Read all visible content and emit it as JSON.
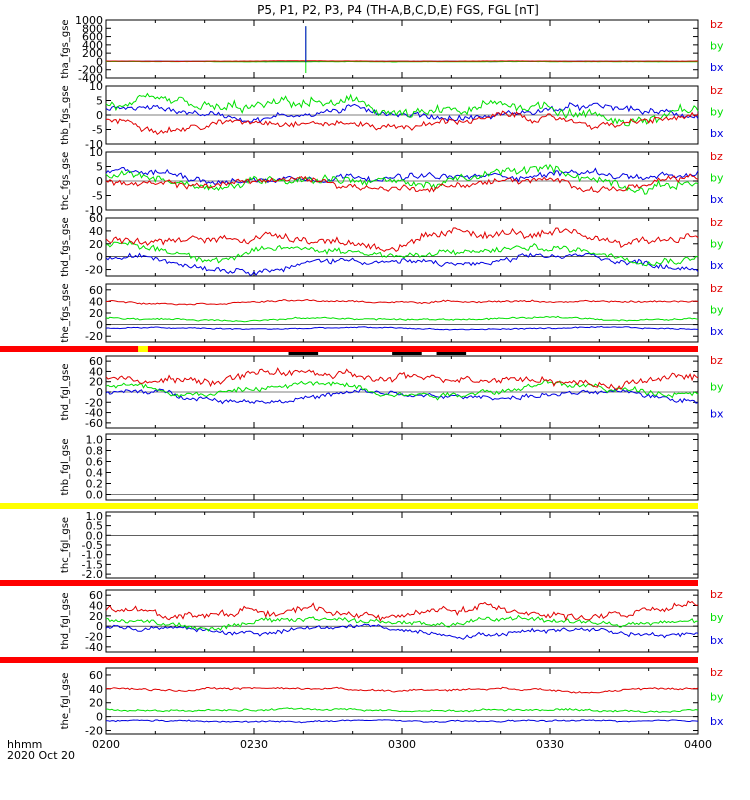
{
  "title": "P5, P1, P2, P3, P4 (TH-A,B,C,D,E) FGS, FGL [nT]",
  "time_label": "hhmm",
  "date_label": "2020 Oct 20",
  "colors": {
    "bz": "#e00000",
    "by": "#00e000",
    "bx": "#0000e0",
    "bar_red": "#ff0000",
    "bar_yellow": "#ffff00",
    "bar_black": "#000000"
  },
  "chart_data": {
    "type": "line",
    "x_ticks": [
      "0200",
      "0230",
      "0300",
      "0330",
      "0400"
    ],
    "x_range_minutes": [
      0,
      120
    ],
    "legend": [
      "bz",
      "by",
      "bx"
    ],
    "panels": [
      {
        "ylabel": "tha_fgs_gse",
        "ylim": [
          -400,
          1000
        ],
        "yticks": [
          -400,
          -200,
          0,
          200,
          400,
          600,
          800,
          1000
        ],
        "ytick_labels": [
          "-400",
          "-200",
          "0",
          "200",
          "400",
          "600",
          "800",
          "1000"
        ],
        "series": {
          "bz": {
            "base": 8,
            "amp": 6
          },
          "by": {
            "base": -5,
            "amp": 8
          },
          "bx": {
            "base": 2,
            "amp": 6
          }
        },
        "spike": {
          "t": 40.5,
          "from": -280,
          "to": 850
        }
      },
      {
        "ylabel": "thb_fgs_gse",
        "ylim": [
          -10,
          10
        ],
        "yticks": [
          -10,
          -5,
          0,
          5,
          10
        ],
        "ytick_labels": [
          "-10",
          "-5",
          "0",
          "5",
          "10"
        ],
        "series": {
          "bz": {
            "base": -2,
            "amp": 3
          },
          "by": {
            "base": 1,
            "amp": 5
          },
          "bx": {
            "base": 1,
            "amp": 3
          }
        }
      },
      {
        "ylabel": "thc_fgs_gse",
        "ylim": [
          -10,
          10
        ],
        "yticks": [
          -10,
          -5,
          0,
          5,
          10
        ],
        "ytick_labels": [
          "-10",
          "-5",
          "0",
          "5",
          "10"
        ],
        "series": {
          "bz": {
            "base": -1,
            "amp": 3
          },
          "by": {
            "base": 1,
            "amp": 4
          },
          "bx": {
            "base": 2,
            "amp": 3
          }
        }
      },
      {
        "ylabel": "thd_fgs_gse",
        "ylim": [
          -30,
          60
        ],
        "yticks": [
          -20,
          0,
          20,
          40,
          60
        ],
        "ytick_labels": [
          "-20",
          "0",
          "20",
          "40",
          "60"
        ],
        "series": {
          "bz": {
            "base": 28,
            "amp": 18
          },
          "by": {
            "base": 8,
            "amp": 14
          },
          "bx": {
            "base": -8,
            "amp": 12
          }
        }
      },
      {
        "ylabel": "the_fgs_gse",
        "ylim": [
          -30,
          70
        ],
        "yticks": [
          -20,
          0,
          20,
          40,
          60
        ],
        "ytick_labels": [
          "-20",
          "0",
          "20",
          "40",
          "60"
        ],
        "series": {
          "bz": {
            "base": 40,
            "amp": 4
          },
          "by": {
            "base": 10,
            "amp": 4
          },
          "bx": {
            "base": -7,
            "amp": 3
          }
        }
      },
      {
        "ylabel": "thd_fgl_gse",
        "ylim": [
          -70,
          70
        ],
        "yticks": [
          -60,
          -40,
          -20,
          0,
          20,
          40,
          60
        ],
        "ytick_labels": [
          "-60",
          "-40",
          "-20",
          "0",
          "20",
          "40",
          "60"
        ],
        "series": {
          "bz": {
            "base": 28,
            "amp": 20
          },
          "by": {
            "base": 8,
            "amp": 16
          },
          "bx": {
            "base": -8,
            "amp": 13
          }
        }
      },
      {
        "ylabel": "thb_fgl_gse",
        "ylim": [
          -0.1,
          1.1
        ],
        "yticks": [
          0,
          0.2,
          0.4,
          0.6,
          0.8,
          1.0
        ],
        "ytick_labels": [
          "0.0",
          "0.2",
          "0.4",
          "0.6",
          "0.8",
          "1.0"
        ],
        "series": {}
      },
      {
        "ylabel": "thc_fgl_gse",
        "ylim": [
          -2.2,
          1.2
        ],
        "yticks": [
          -2.0,
          -1.5,
          -1.0,
          -0.5,
          0,
          0.5,
          1.0
        ],
        "ytick_labels": [
          "-2.0",
          "-1.5",
          "-1.0",
          "-0.5",
          "0.0",
          "0.5",
          "1.0"
        ],
        "series": {}
      },
      {
        "ylabel": "thd_fgl_gse",
        "ylim": [
          -50,
          70
        ],
        "yticks": [
          -40,
          -20,
          0,
          20,
          40,
          60
        ],
        "ytick_labels": [
          "-40",
          "-20",
          "0",
          "20",
          "40",
          "60"
        ],
        "series": {
          "bz": {
            "base": 28,
            "amp": 18
          },
          "by": {
            "base": 8,
            "amp": 14
          },
          "bx": {
            "base": -8,
            "amp": 12
          }
        }
      },
      {
        "ylabel": "the_fgl_gse",
        "ylim": [
          -25,
          70
        ],
        "yticks": [
          -20,
          0,
          20,
          40,
          60
        ],
        "ytick_labels": [
          "-20",
          "0",
          "20",
          "40",
          "60"
        ],
        "series": {
          "bz": {
            "base": 40,
            "amp": 4
          },
          "by": {
            "base": 10,
            "amp": 4
          },
          "bx": {
            "base": -7,
            "amp": 3
          }
        }
      }
    ],
    "status_bars": [
      {
        "after_panel": 4,
        "color": "red",
        "marks": [
          {
            "t0": 6.5,
            "t1": 8.5,
            "color": "yellow"
          }
        ],
        "black_marks": [
          [
            37,
            43
          ],
          [
            58,
            64
          ],
          [
            67,
            73
          ]
        ]
      },
      {
        "after_panel": 6,
        "color": "yellow",
        "marks": [],
        "black_marks": []
      },
      {
        "after_panel": 7,
        "color": "red",
        "marks": [],
        "black_marks": []
      },
      {
        "after_panel": 8,
        "color": "red",
        "marks": [],
        "black_marks": []
      }
    ]
  }
}
